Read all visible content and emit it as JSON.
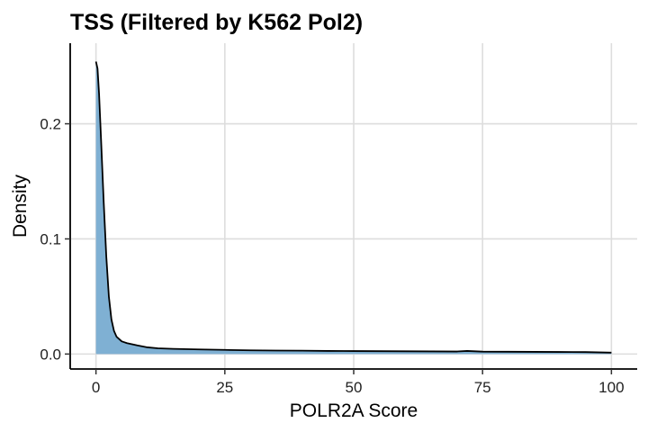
{
  "chart_data": {
    "type": "area",
    "title": "TSS (Filtered by K562 Pol2)",
    "xlabel": "POLR2A Score",
    "ylabel": "Density",
    "xlim": [
      -5,
      105
    ],
    "ylim": [
      -0.013,
      0.27
    ],
    "xticks": [
      0,
      25,
      50,
      75,
      100
    ],
    "xtick_labels": [
      "0",
      "25",
      "50",
      "75",
      "100"
    ],
    "yticks": [
      0.0,
      0.1,
      0.2
    ],
    "ytick_labels": [
      "0.0",
      "0.1",
      "0.2"
    ],
    "grid": true,
    "legend": "none",
    "fill_color": "#7fb0d3",
    "line_color": "#000000",
    "series": [
      {
        "x": [
          0,
          0.3,
          0.6,
          1,
          1.5,
          2,
          2.5,
          3,
          3.5,
          4,
          5,
          6,
          8,
          10,
          12,
          15,
          20,
          25,
          30,
          35,
          40,
          45,
          50,
          55,
          60,
          65,
          70,
          72,
          75,
          80,
          85,
          90,
          95,
          100
        ],
        "y": [
          0.254,
          0.248,
          0.226,
          0.185,
          0.132,
          0.085,
          0.05,
          0.03,
          0.02,
          0.015,
          0.011,
          0.0095,
          0.0075,
          0.0058,
          0.005,
          0.0045,
          0.004,
          0.0036,
          0.0032,
          0.003,
          0.0029,
          0.0027,
          0.0026,
          0.0025,
          0.0024,
          0.0023,
          0.0022,
          0.0027,
          0.0021,
          0.002,
          0.0019,
          0.0018,
          0.0017,
          0.0012
        ]
      }
    ]
  }
}
